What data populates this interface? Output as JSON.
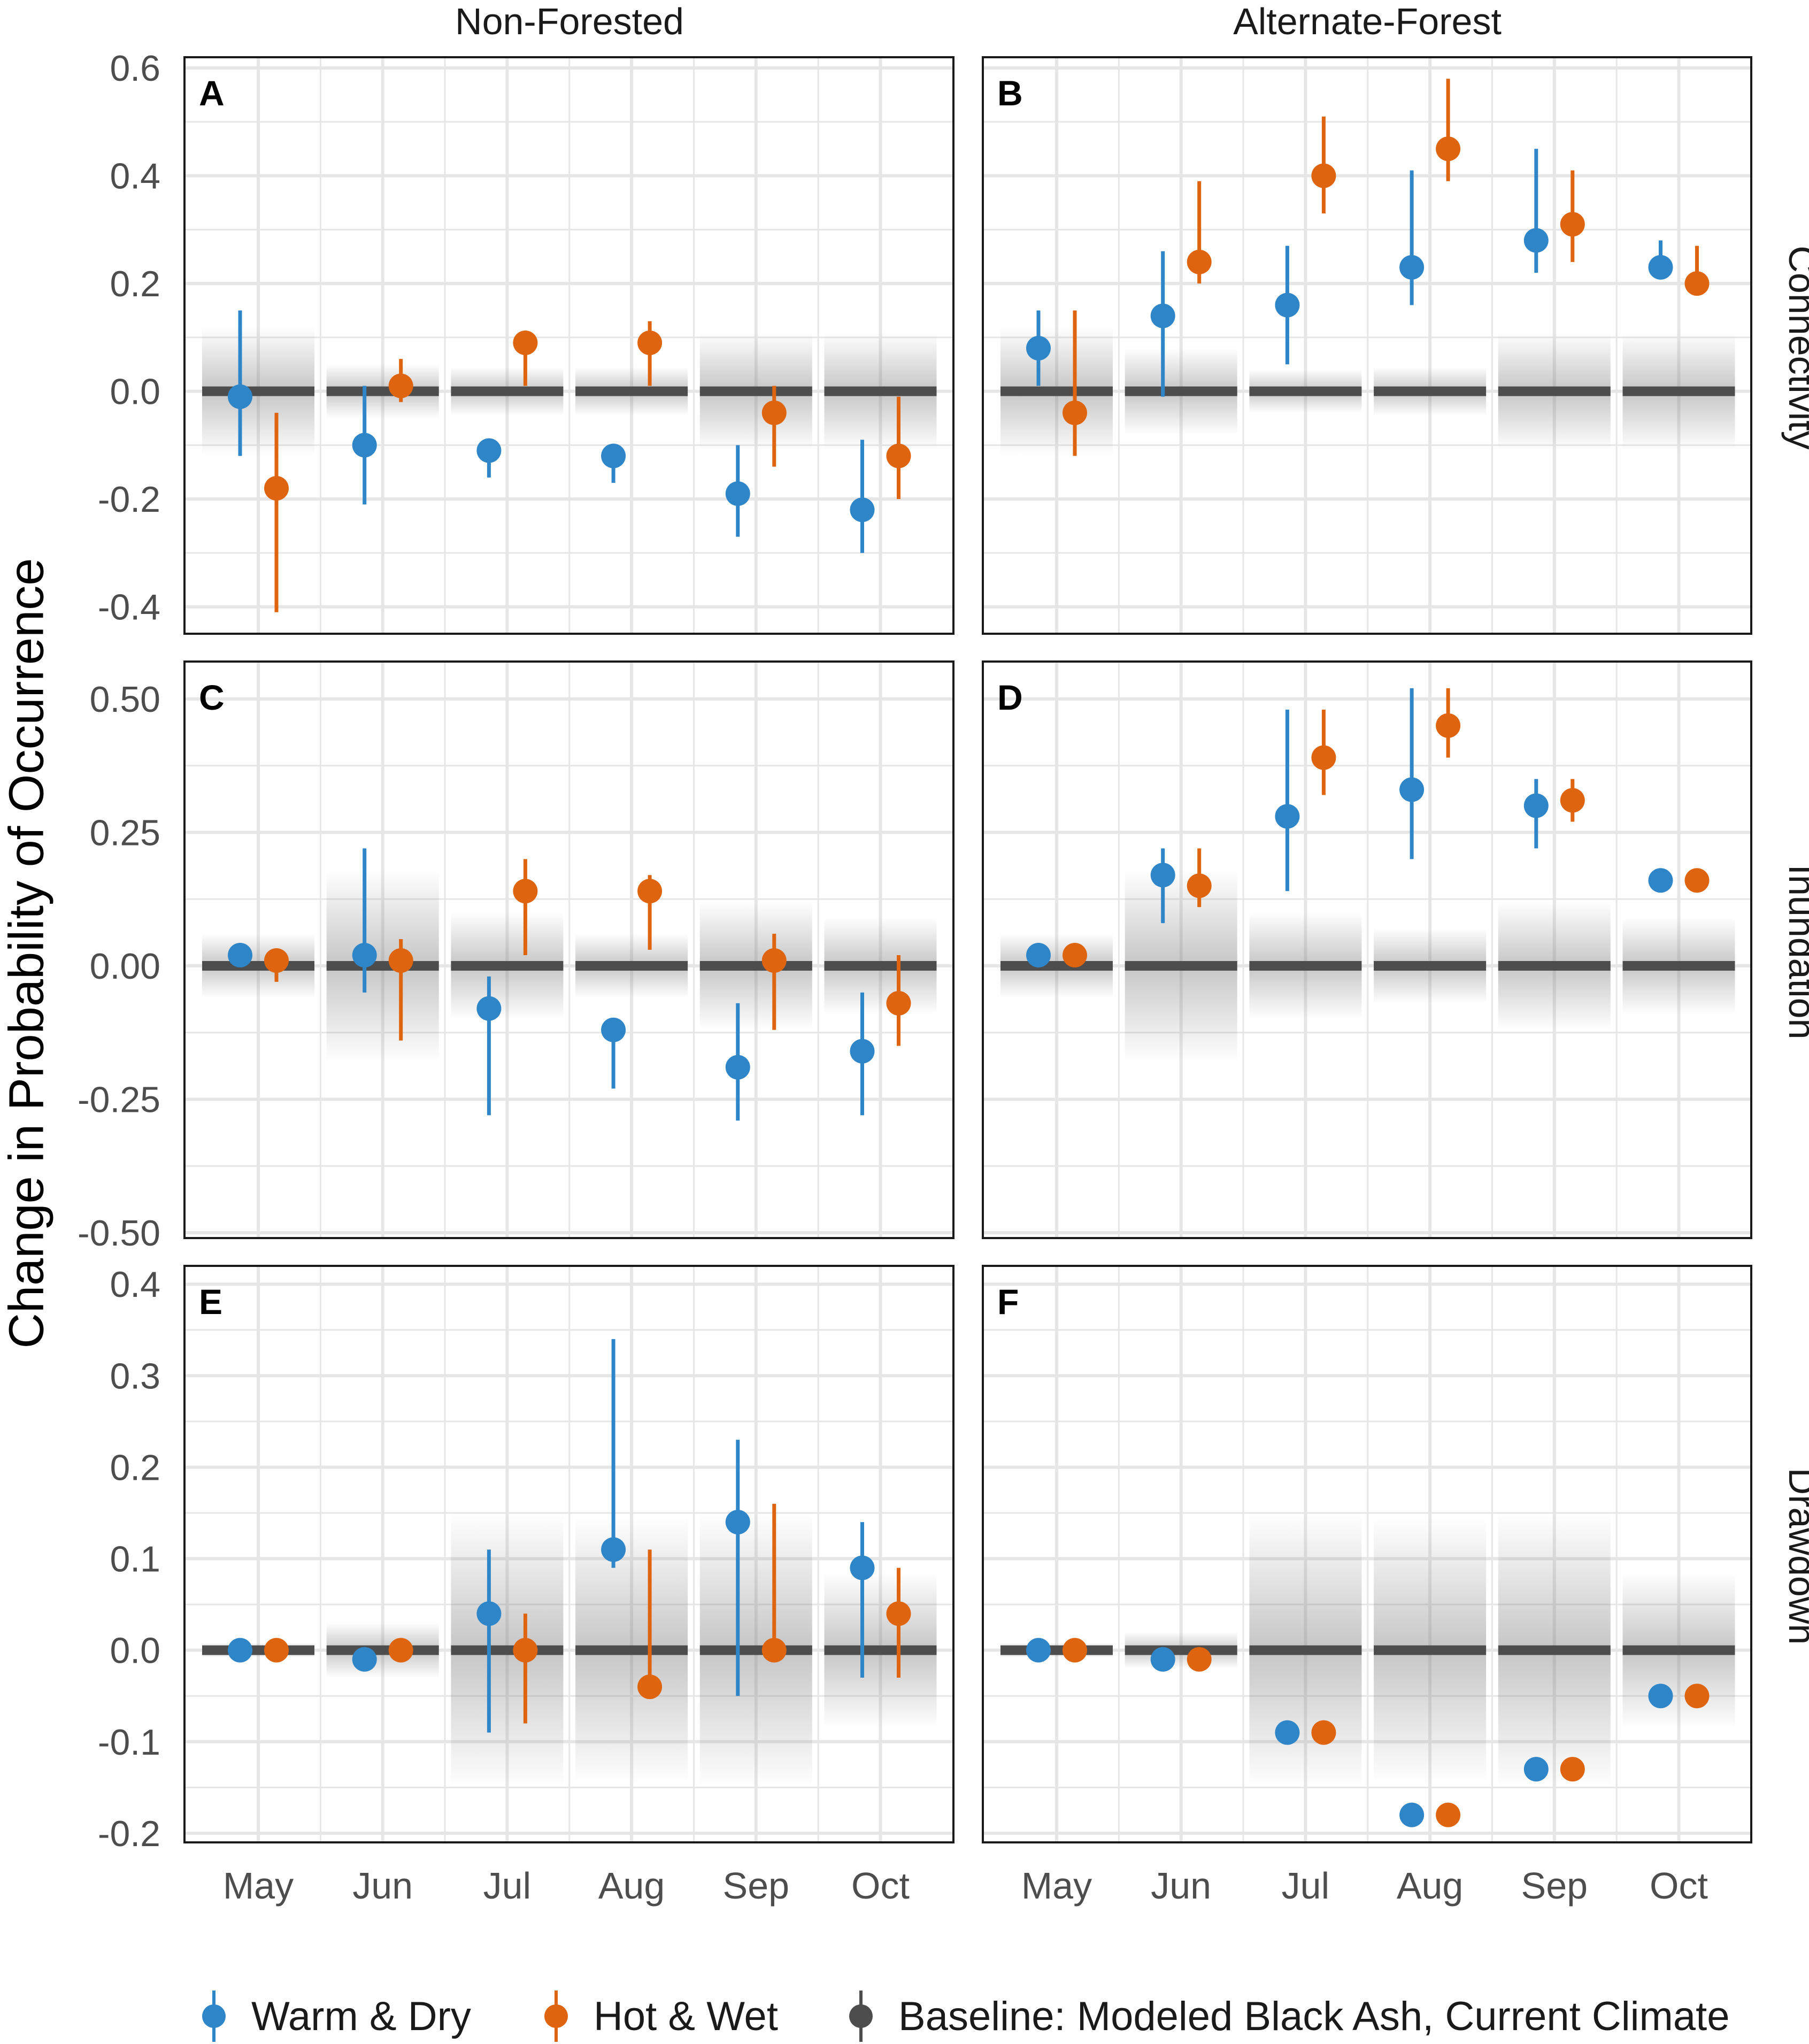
{
  "chart_data": {
    "type": "scatter",
    "title": "",
    "ylabel": "Change in Probability of Occurrence",
    "xlabel": "",
    "categories": [
      "May",
      "Jun",
      "Jul",
      "Aug",
      "Sep",
      "Oct"
    ],
    "columns": [
      "Non-Forested",
      "Alternate-Forest"
    ],
    "rows": [
      "Connectivity",
      "Inundation",
      "Drawdown"
    ],
    "series_names": {
      "warm_dry": "Warm & Dry",
      "hot_wet": "Hot & Wet",
      "baseline": "Baseline: Modeled Black Ash, Current Climate"
    },
    "colors": {
      "warm_dry": "#2E86C9",
      "hot_wet": "#DE6410",
      "baseline": "#4d4d4d",
      "grid": "#e6e6e6",
      "text": "#4d4d4d"
    },
    "panels": [
      {
        "label": "A",
        "column": "Non-Forested",
        "row": "Connectivity",
        "ylim": [
          -0.45,
          0.62
        ],
        "yticks": [
          -0.4,
          -0.2,
          0.0,
          0.2,
          0.4,
          0.6
        ],
        "ytick_labels": [
          "-0.4",
          "-0.2",
          "0.0",
          "0.2",
          "0.4",
          "0.6"
        ],
        "baseline_band": [
          0.12,
          0.05,
          0.045,
          0.045,
          0.11,
          0.11
        ],
        "warm_dry": [
          {
            "mean": -0.01,
            "lo": -0.12,
            "hi": 0.15
          },
          {
            "mean": -0.1,
            "lo": -0.21,
            "hi": 0.01
          },
          {
            "mean": -0.11,
            "lo": -0.16,
            "hi": -0.09
          },
          {
            "mean": -0.12,
            "lo": -0.17,
            "hi": -0.11
          },
          {
            "mean": -0.19,
            "lo": -0.27,
            "hi": -0.1
          },
          {
            "mean": -0.22,
            "lo": -0.3,
            "hi": -0.09
          }
        ],
        "hot_wet": [
          {
            "mean": -0.18,
            "lo": -0.41,
            "hi": -0.04
          },
          {
            "mean": 0.01,
            "lo": -0.02,
            "hi": 0.06
          },
          {
            "mean": 0.09,
            "lo": 0.01,
            "hi": 0.1
          },
          {
            "mean": 0.09,
            "lo": 0.01,
            "hi": 0.13
          },
          {
            "mean": -0.04,
            "lo": -0.14,
            "hi": 0.01
          },
          {
            "mean": -0.12,
            "lo": -0.2,
            "hi": -0.01
          }
        ]
      },
      {
        "label": "B",
        "column": "Alternate-Forest",
        "row": "Connectivity",
        "ylim": [
          -0.45,
          0.62
        ],
        "yticks": [
          -0.4,
          -0.2,
          0.0,
          0.2,
          0.4,
          0.6
        ],
        "ytick_labels": [
          "-0.4",
          "-0.2",
          "0.0",
          "0.2",
          "0.4",
          "0.6"
        ],
        "baseline_band": [
          0.12,
          0.08,
          0.04,
          0.045,
          0.11,
          0.11
        ],
        "warm_dry": [
          {
            "mean": 0.08,
            "lo": 0.01,
            "hi": 0.15
          },
          {
            "mean": 0.14,
            "lo": -0.01,
            "hi": 0.26
          },
          {
            "mean": 0.16,
            "lo": 0.05,
            "hi": 0.27
          },
          {
            "mean": 0.23,
            "lo": 0.16,
            "hi": 0.41
          },
          {
            "mean": 0.28,
            "lo": 0.22,
            "hi": 0.45
          },
          {
            "mean": 0.23,
            "lo": 0.21,
            "hi": 0.28
          }
        ],
        "hot_wet": [
          {
            "mean": -0.04,
            "lo": -0.12,
            "hi": 0.15
          },
          {
            "mean": 0.24,
            "lo": 0.2,
            "hi": 0.39
          },
          {
            "mean": 0.4,
            "lo": 0.33,
            "hi": 0.51
          },
          {
            "mean": 0.45,
            "lo": 0.39,
            "hi": 0.58
          },
          {
            "mean": 0.31,
            "lo": 0.24,
            "hi": 0.41
          },
          {
            "mean": 0.2,
            "lo": 0.18,
            "hi": 0.27
          }
        ]
      },
      {
        "label": "C",
        "column": "Non-Forested",
        "row": "Inundation",
        "ylim": [
          -0.51,
          0.57
        ],
        "yticks": [
          -0.5,
          -0.25,
          0.0,
          0.25,
          0.5
        ],
        "ytick_labels": [
          "-0.50",
          "-0.25",
          "0.00",
          "0.25",
          "0.50"
        ],
        "baseline_band": [
          0.06,
          0.18,
          0.1,
          0.06,
          0.12,
          0.09
        ],
        "warm_dry": [
          {
            "mean": 0.02,
            "lo": 0.01,
            "hi": 0.03
          },
          {
            "mean": 0.02,
            "lo": -0.05,
            "hi": 0.22
          },
          {
            "mean": -0.08,
            "lo": -0.28,
            "hi": -0.02
          },
          {
            "mean": -0.12,
            "lo": -0.23,
            "hi": -0.1
          },
          {
            "mean": -0.19,
            "lo": -0.29,
            "hi": -0.07
          },
          {
            "mean": -0.16,
            "lo": -0.28,
            "hi": -0.05
          }
        ],
        "hot_wet": [
          {
            "mean": 0.01,
            "lo": -0.03,
            "hi": 0.02
          },
          {
            "mean": 0.01,
            "lo": -0.14,
            "hi": 0.05
          },
          {
            "mean": 0.14,
            "lo": 0.02,
            "hi": 0.2
          },
          {
            "mean": 0.14,
            "lo": 0.03,
            "hi": 0.17
          },
          {
            "mean": 0.01,
            "lo": -0.12,
            "hi": 0.06
          },
          {
            "mean": -0.07,
            "lo": -0.15,
            "hi": 0.02
          }
        ]
      },
      {
        "label": "D",
        "column": "Alternate-Forest",
        "row": "Inundation",
        "ylim": [
          -0.51,
          0.57
        ],
        "yticks": [
          -0.5,
          -0.25,
          0.0,
          0.25,
          0.5
        ],
        "ytick_labels": [
          "-0.50",
          "-0.25",
          "0.00",
          "0.25",
          "0.50"
        ],
        "baseline_band": [
          0.06,
          0.18,
          0.1,
          0.07,
          0.12,
          0.09
        ],
        "warm_dry": [
          {
            "mean": 0.02,
            "lo": 0.01,
            "hi": 0.03
          },
          {
            "mean": 0.17,
            "lo": 0.08,
            "hi": 0.22
          },
          {
            "mean": 0.28,
            "lo": 0.14,
            "hi": 0.48
          },
          {
            "mean": 0.33,
            "lo": 0.2,
            "hi": 0.52
          },
          {
            "mean": 0.3,
            "lo": 0.22,
            "hi": 0.35
          },
          {
            "mean": 0.16,
            "lo": 0.15,
            "hi": 0.17
          }
        ],
        "hot_wet": [
          {
            "mean": 0.02,
            "lo": 0.01,
            "hi": 0.03
          },
          {
            "mean": 0.15,
            "lo": 0.11,
            "hi": 0.22
          },
          {
            "mean": 0.39,
            "lo": 0.32,
            "hi": 0.48
          },
          {
            "mean": 0.45,
            "lo": 0.39,
            "hi": 0.52
          },
          {
            "mean": 0.31,
            "lo": 0.27,
            "hi": 0.35
          },
          {
            "mean": 0.16,
            "lo": 0.15,
            "hi": 0.17
          }
        ]
      },
      {
        "label": "E",
        "column": "Non-Forested",
        "row": "Drawdown",
        "ylim": [
          -0.21,
          0.42
        ],
        "yticks": [
          -0.2,
          -0.1,
          0.0,
          0.1,
          0.2,
          0.3,
          0.4
        ],
        "ytick_labels": [
          "-0.2",
          "-0.1",
          "0.0",
          "0.1",
          "0.2",
          "0.3",
          "0.4"
        ],
        "baseline_band": [
          0.008,
          0.03,
          0.15,
          0.145,
          0.15,
          0.085
        ],
        "warm_dry": [
          {
            "mean": 0.0,
            "lo": -0.005,
            "hi": 0.005
          },
          {
            "mean": -0.01,
            "lo": -0.015,
            "hi": -0.005
          },
          {
            "mean": 0.04,
            "lo": -0.09,
            "hi": 0.11
          },
          {
            "mean": 0.11,
            "lo": 0.09,
            "hi": 0.34
          },
          {
            "mean": 0.14,
            "lo": -0.05,
            "hi": 0.23
          },
          {
            "mean": 0.09,
            "lo": -0.03,
            "hi": 0.14
          }
        ],
        "hot_wet": [
          {
            "mean": 0.0,
            "lo": -0.005,
            "hi": 0.005
          },
          {
            "mean": 0.0,
            "lo": -0.01,
            "hi": 0.01
          },
          {
            "mean": 0.0,
            "lo": -0.08,
            "hi": 0.04
          },
          {
            "mean": -0.04,
            "lo": -0.04,
            "hi": 0.11
          },
          {
            "mean": 0.0,
            "lo": -0.01,
            "hi": 0.16
          },
          {
            "mean": 0.04,
            "lo": -0.03,
            "hi": 0.09
          }
        ]
      },
      {
        "label": "F",
        "column": "Alternate-Forest",
        "row": "Drawdown",
        "ylim": [
          -0.21,
          0.42
        ],
        "yticks": [
          -0.2,
          -0.1,
          0.0,
          0.1,
          0.2,
          0.3,
          0.4
        ],
        "ytick_labels": [
          "-0.2",
          "-0.1",
          "0.0",
          "0.1",
          "0.2",
          "0.3",
          "0.4"
        ],
        "baseline_band": [
          0.008,
          0.02,
          0.15,
          0.145,
          0.15,
          0.085
        ],
        "warm_dry": [
          {
            "mean": 0.0,
            "lo": -0.004,
            "hi": 0.004
          },
          {
            "mean": -0.01,
            "lo": -0.014,
            "hi": -0.006
          },
          {
            "mean": -0.09,
            "lo": -0.094,
            "hi": -0.086
          },
          {
            "mean": -0.18,
            "lo": -0.184,
            "hi": -0.176
          },
          {
            "mean": -0.13,
            "lo": -0.134,
            "hi": -0.126
          },
          {
            "mean": -0.05,
            "lo": -0.054,
            "hi": -0.046
          }
        ],
        "hot_wet": [
          {
            "mean": 0.0,
            "lo": -0.004,
            "hi": 0.004
          },
          {
            "mean": -0.01,
            "lo": -0.014,
            "hi": -0.006
          },
          {
            "mean": -0.09,
            "lo": -0.094,
            "hi": -0.086
          },
          {
            "mean": -0.18,
            "lo": -0.184,
            "hi": -0.176
          },
          {
            "mean": -0.13,
            "lo": -0.134,
            "hi": -0.126
          },
          {
            "mean": -0.05,
            "lo": -0.054,
            "hi": -0.046
          }
        ]
      }
    ]
  }
}
